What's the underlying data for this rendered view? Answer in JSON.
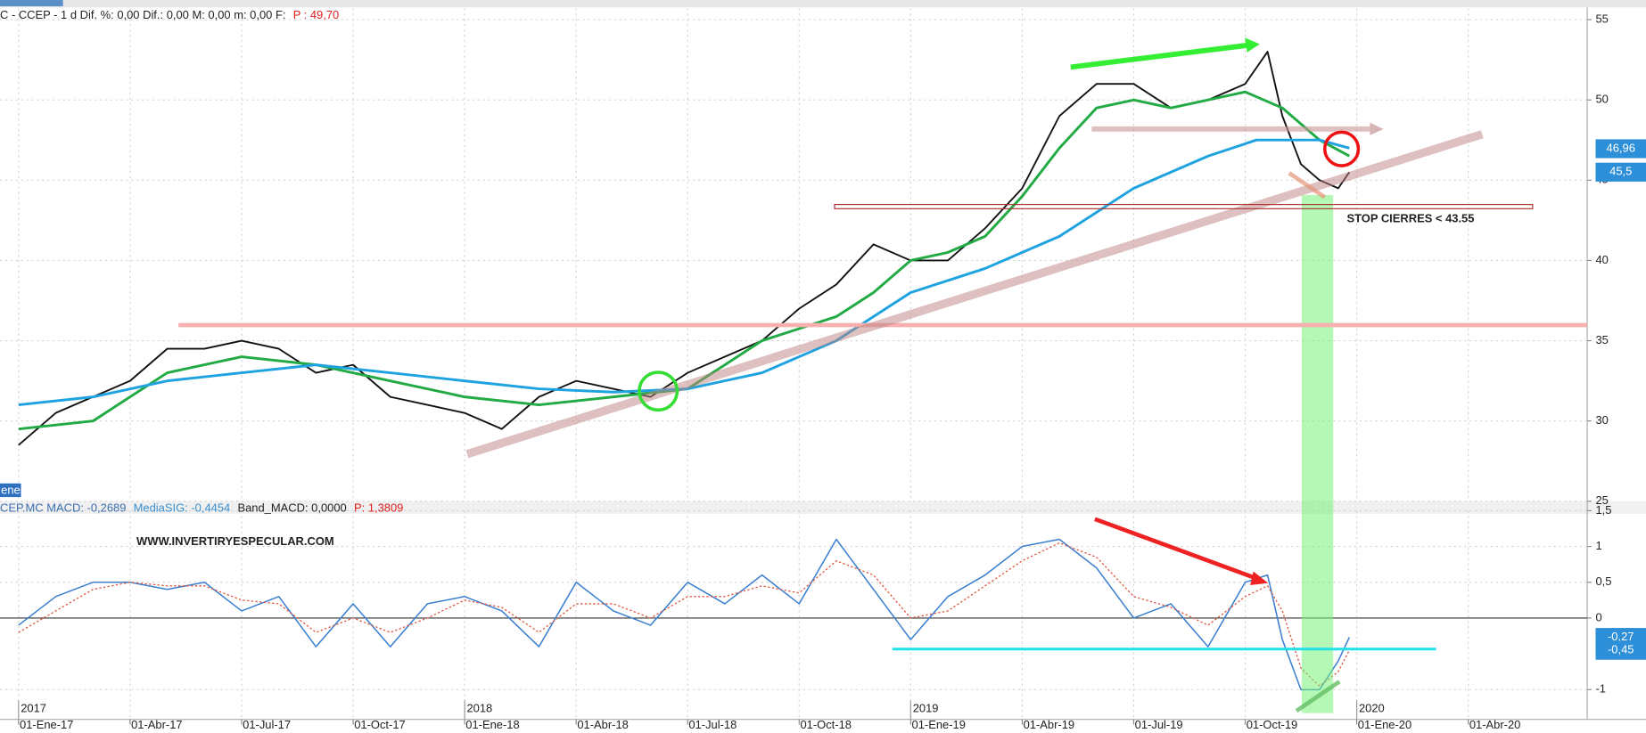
{
  "chart_data": [
    {
      "type": "line",
      "header": [
        {
          "text": "C - CCEP -  1 d Dif. %: 0,00 Dif.: 0,00 M: 0,00 m: 0,00 F:",
          "color": "#222222"
        },
        {
          "text": "P : 49,70",
          "color": "#e02020"
        }
      ],
      "tab_label": "enes",
      "annotations": [
        "STOP CIERRES < 43.55"
      ],
      "xlim": [
        -0.5,
        42.2
      ],
      "xticks": [
        {
          "value": 0,
          "label": "01-Ene-17"
        },
        {
          "value": 3,
          "label": "01-Abr-17"
        },
        {
          "value": 6,
          "label": "01-Jul-17"
        },
        {
          "value": 9,
          "label": "01-Oct-17"
        },
        {
          "value": 12,
          "label": "01-Ene-18"
        },
        {
          "value": 15,
          "label": "01-Abr-18"
        },
        {
          "value": 18,
          "label": "01-Jul-18"
        },
        {
          "value": 21,
          "label": "01-Oct-18"
        },
        {
          "value": 24,
          "label": "01-Ene-19"
        },
        {
          "value": 27,
          "label": "01-Abr-19"
        },
        {
          "value": 30,
          "label": "01-Jul-19"
        },
        {
          "value": 33,
          "label": "01-Oct-19"
        },
        {
          "value": 36,
          "label": "01-Ene-20"
        },
        {
          "value": 39,
          "label": "01-Abr-20"
        }
      ],
      "ylim": [
        25,
        55.7
      ],
      "yticks": [
        25,
        30,
        35,
        40,
        45,
        50,
        55
      ],
      "grid": true,
      "series": [
        {
          "color": "#111111",
          "width": 1.6,
          "x": [
            0,
            0.5,
            1,
            2,
            3,
            4,
            5,
            6,
            7,
            8,
            9,
            10,
            11,
            12,
            13,
            14,
            15,
            16,
            17,
            18,
            19,
            20,
            21,
            22,
            23,
            24,
            25,
            26,
            27,
            28,
            29,
            30,
            31,
            32,
            33,
            33.6,
            34,
            34.5,
            35,
            35.5,
            35.8
          ],
          "values": [
            28.5,
            29.5,
            30.5,
            31.5,
            32.5,
            34.5,
            34.5,
            35,
            34.5,
            33,
            33.5,
            31.5,
            31,
            30.5,
            29.5,
            31.5,
            32.5,
            32,
            31.5,
            33,
            34,
            35,
            37,
            38.5,
            41,
            40,
            40,
            42,
            44.5,
            49,
            51,
            51,
            49.5,
            50,
            51,
            53,
            49,
            46,
            45,
            44.5,
            45.5
          ]
        },
        {
          "color": "#22aa44",
          "width": 2.5,
          "x": [
            0,
            2,
            4,
            6,
            8,
            10,
            12,
            14,
            16,
            18,
            19,
            20,
            22,
            23,
            24,
            25,
            26,
            27,
            28,
            29,
            30,
            31,
            32,
            33,
            34,
            35,
            35.8
          ],
          "values": [
            29.5,
            30,
            33,
            34,
            33.5,
            32.5,
            31.5,
            31,
            31.5,
            32,
            33.5,
            35,
            36.5,
            38,
            40,
            40.5,
            41.5,
            44,
            47,
            49.5,
            50,
            49.5,
            50,
            50.5,
            49.5,
            47.5,
            46.5
          ]
        },
        {
          "color": "#1fa3e0",
          "width": 2.5,
          "x": [
            0,
            2,
            4,
            6,
            8,
            10,
            12,
            14,
            16,
            18,
            20,
            22,
            24,
            26,
            28,
            30,
            32,
            33.3,
            35,
            35.8
          ],
          "values": [
            31,
            31.5,
            32.5,
            33,
            33.5,
            33,
            32.5,
            32,
            31.8,
            32,
            33,
            35,
            38,
            39.5,
            41.5,
            44.5,
            46.5,
            47.5,
            47.5,
            47
          ]
        }
      ],
      "last_labels": [
        {
          "value": 46.96,
          "label": "46,96",
          "color": "#2d8fd8"
        },
        {
          "value": 45.5,
          "label": "45,5",
          "color": "#2d8fd8"
        }
      ]
    },
    {
      "type": "line",
      "header": [
        {
          "text": "CEP.MC MACD: -0,2689",
          "color": "#3a6fb0"
        },
        {
          "text": "MediaSIG: -0,4454",
          "color": "#3a8fd0"
        },
        {
          "text": "Band_MACD: 0,0000",
          "color": "#222222"
        },
        {
          "text": "P: 1,3809",
          "color": "#e02020"
        }
      ],
      "annotations": [
        "WWW.INVERTIRYESPECULAR.COM"
      ],
      "year_ticks": [
        {
          "value": 0,
          "label": "2017"
        },
        {
          "value": 12,
          "label": "2018"
        },
        {
          "value": 24,
          "label": "2019"
        },
        {
          "value": 36,
          "label": "2020"
        }
      ],
      "xlim": [
        -0.5,
        42.2
      ],
      "ylim": [
        -1.4,
        1.5
      ],
      "yticks": [
        {
          "value": 1.5,
          "label": "1,5"
        },
        1,
        {
          "value": 0.5,
          "label": "0,5"
        },
        0,
        -1
      ],
      "grid": true,
      "zero_line": true,
      "series": [
        {
          "color": "#3a7fd0",
          "width": 1.3,
          "x": [
            0,
            1,
            2,
            3,
            4,
            5,
            6,
            7,
            8,
            9,
            10,
            11,
            12,
            13,
            14,
            15,
            16,
            17,
            18,
            19,
            20,
            21,
            22,
            23,
            24,
            25,
            26,
            27,
            28,
            29,
            30,
            31,
            32,
            33,
            33.6,
            34,
            34.5,
            35,
            35.5,
            35.8
          ],
          "values": [
            -0.1,
            0.3,
            0.5,
            0.5,
            0.4,
            0.5,
            0.1,
            0.3,
            -0.4,
            0.2,
            -0.4,
            0.2,
            0.3,
            0.1,
            -0.4,
            0.5,
            0.1,
            -0.1,
            0.5,
            0.2,
            0.6,
            0.2,
            1.1,
            0.4,
            -0.3,
            0.3,
            0.6,
            1,
            1.1,
            0.7,
            0,
            0.2,
            -0.4,
            0.5,
            0.6,
            -0.3,
            -1.0,
            -1.0,
            -0.6,
            -0.27
          ]
        },
        {
          "color": "#e0553d",
          "width": 1.1,
          "dashed": true,
          "x": [
            0,
            1,
            2,
            3,
            4,
            5,
            6,
            7,
            8,
            9,
            10,
            11,
            12,
            13,
            14,
            15,
            16,
            17,
            18,
            19,
            20,
            21,
            22,
            23,
            24,
            25,
            26,
            27,
            28,
            29,
            30,
            31,
            32,
            33,
            33.6,
            34,
            34.5,
            35,
            35.5,
            35.8
          ],
          "values": [
            -0.2,
            0.1,
            0.4,
            0.5,
            0.45,
            0.45,
            0.25,
            0.2,
            -0.2,
            0,
            -0.2,
            0,
            0.25,
            0.15,
            -0.2,
            0.2,
            0.2,
            0,
            0.3,
            0.3,
            0.45,
            0.35,
            0.8,
            0.6,
            0,
            0.1,
            0.45,
            0.8,
            1.05,
            0.85,
            0.3,
            0.15,
            -0.1,
            0.3,
            0.45,
            0.1,
            -0.7,
            -0.95,
            -0.75,
            -0.45
          ]
        }
      ],
      "last_labels": [
        {
          "value": -0.27,
          "label": "-0,27",
          "color": "#2d8fd8"
        },
        {
          "value": -0.45,
          "label": "-0,45",
          "color": "#2d8fd8"
        }
      ]
    }
  ]
}
